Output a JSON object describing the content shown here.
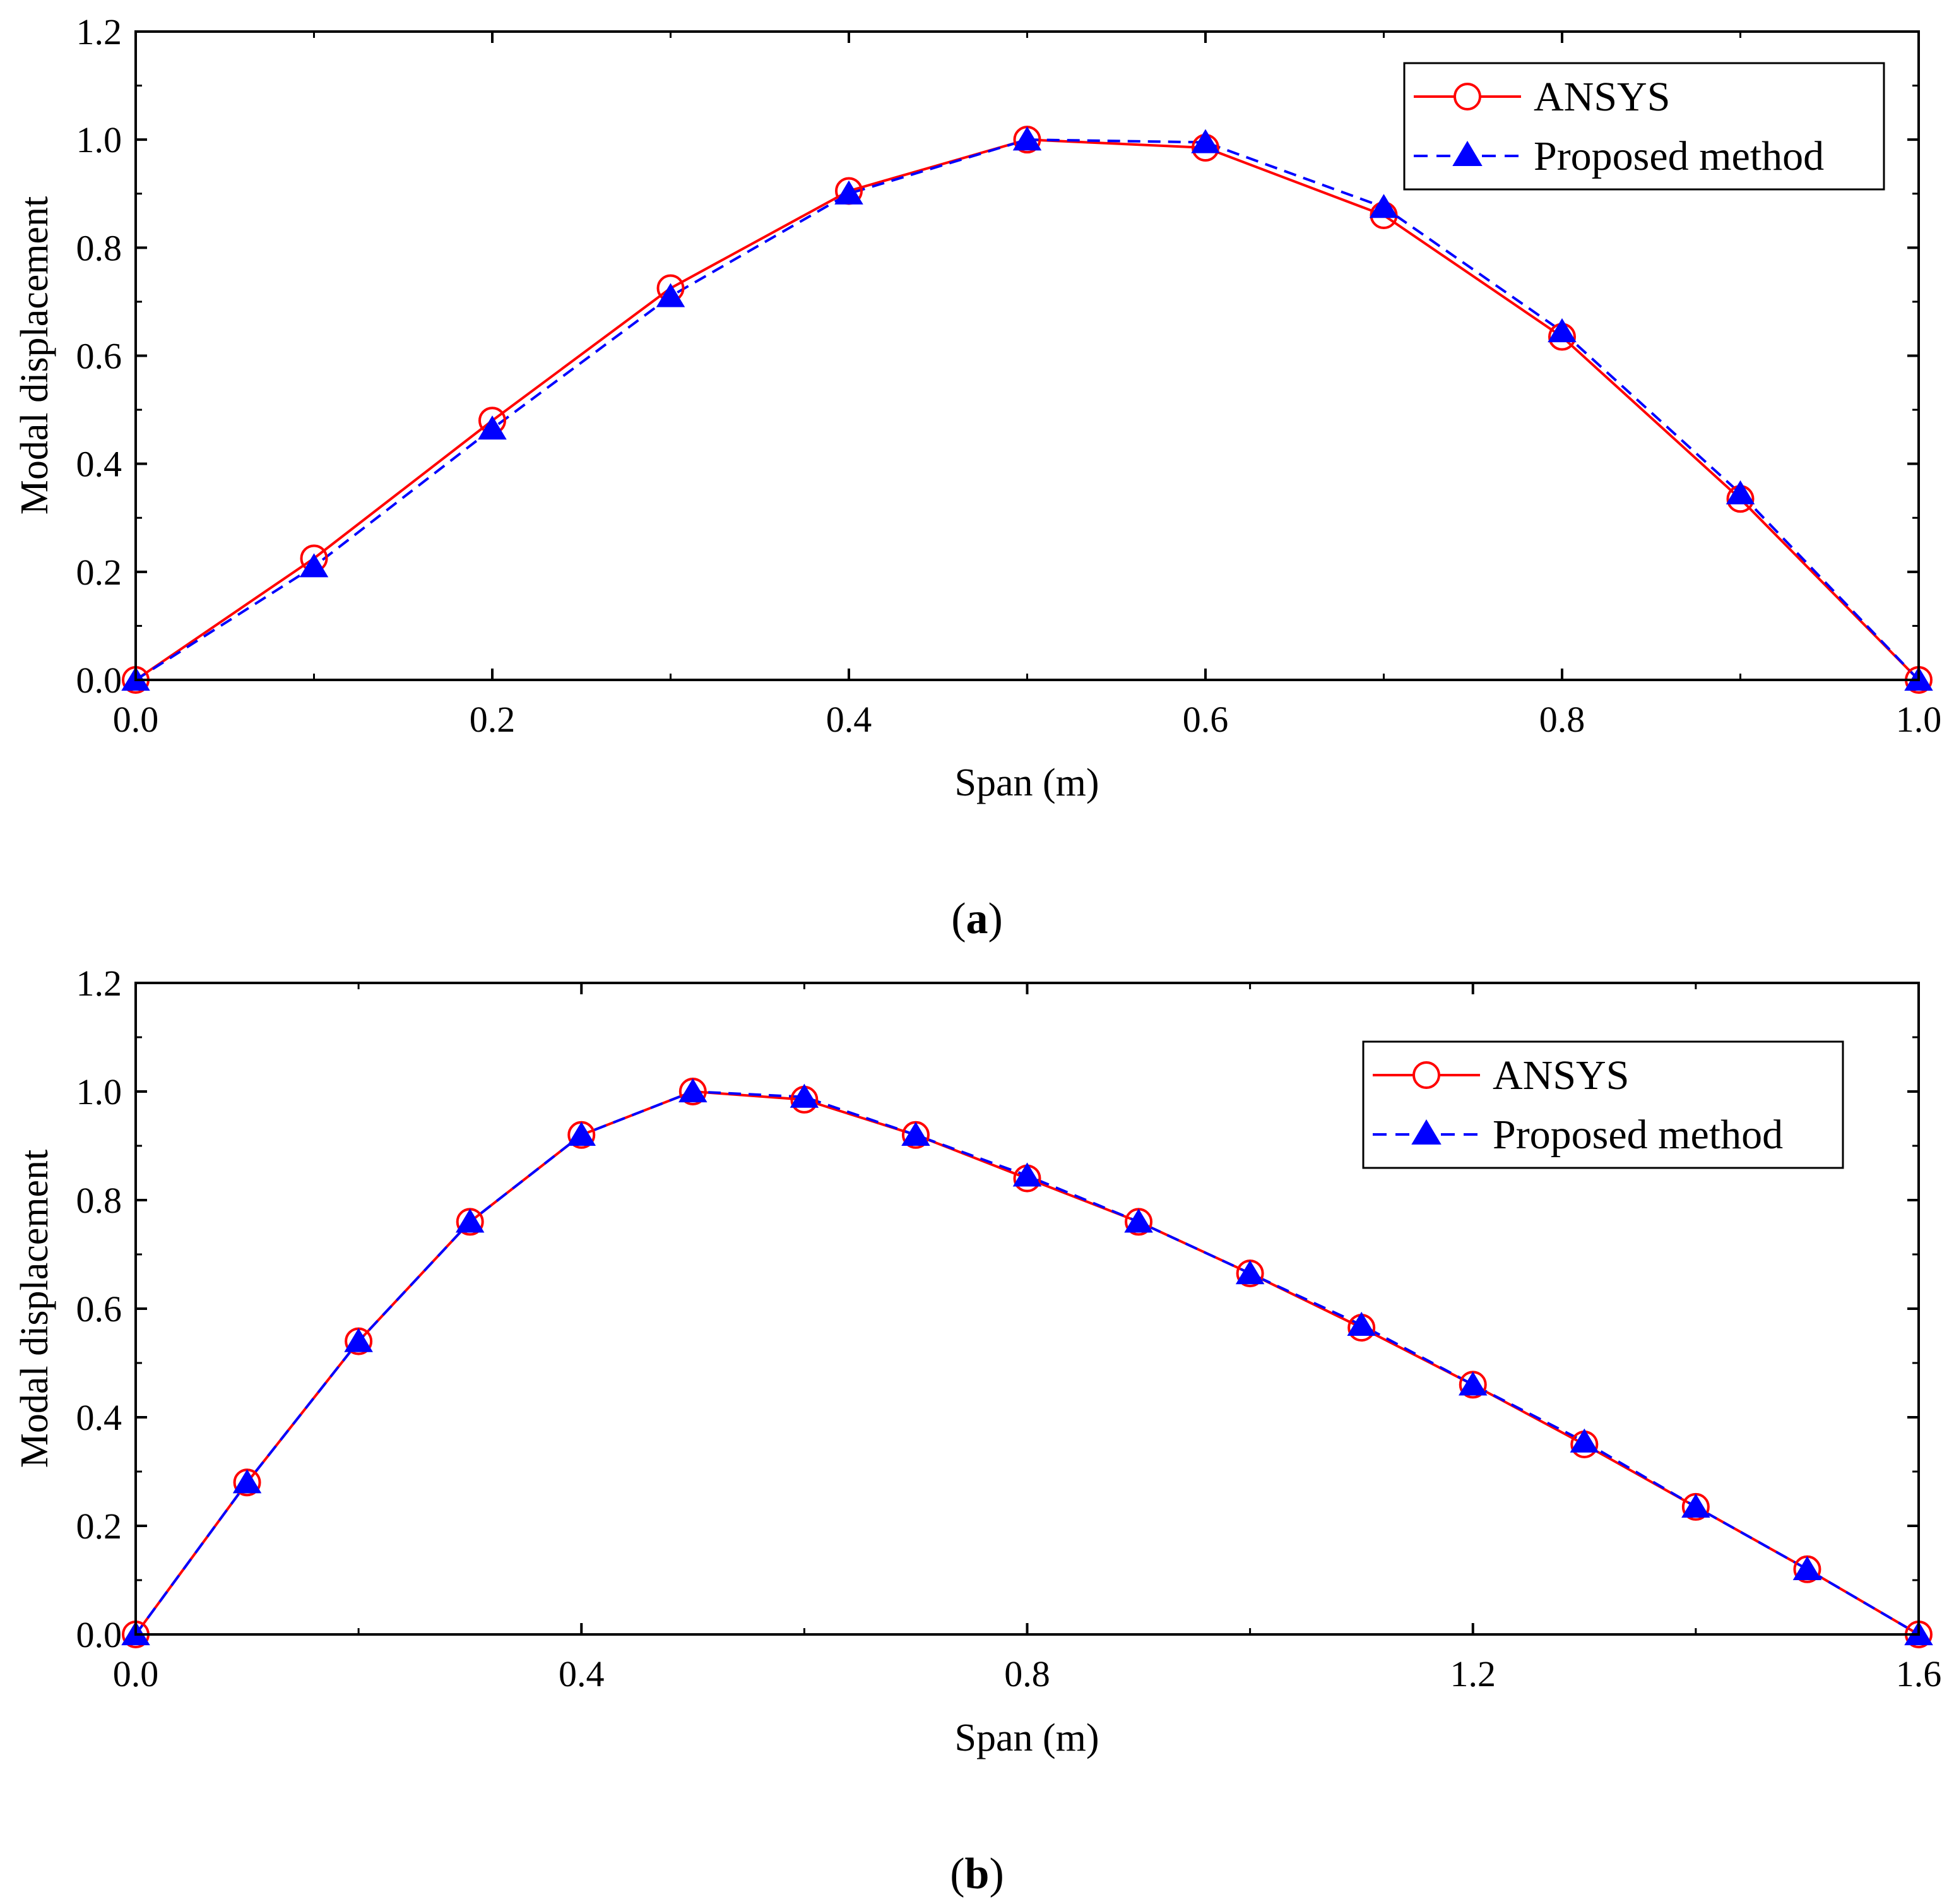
{
  "chart_data": [
    {
      "type": "line",
      "panel_label": "a",
      "xlabel": "Span (m)",
      "ylabel": "Modal displacement",
      "xlim": [
        0.0,
        1.0
      ],
      "ylim": [
        0.0,
        1.2
      ],
      "xticks": [
        "0.0",
        "0.2",
        "0.4",
        "0.6",
        "0.8",
        "1.0"
      ],
      "yticks": [
        "0.0",
        "0.2",
        "0.4",
        "0.6",
        "0.8",
        "1.0",
        "1.2"
      ],
      "xtick_values": [
        0.0,
        0.2,
        0.4,
        0.6,
        0.8,
        1.0
      ],
      "ytick_values": [
        0.0,
        0.2,
        0.4,
        0.6,
        0.8,
        1.0,
        1.2
      ],
      "legend_position": "top-right",
      "x": [
        0.0,
        0.1,
        0.2,
        0.3,
        0.4,
        0.5,
        0.6,
        0.7,
        0.8,
        0.9,
        1.0
      ],
      "series": [
        {
          "name": "ANSYS",
          "color": "#ff0000",
          "marker": "circle",
          "line": "solid",
          "values": [
            0.0,
            0.225,
            0.48,
            0.725,
            0.905,
            1.0,
            0.985,
            0.86,
            0.635,
            0.335,
            0.0
          ]
        },
        {
          "name": "Proposed method",
          "color": "#0000ff",
          "marker": "triangle",
          "line": "dashed",
          "values": [
            0.0,
            0.21,
            0.465,
            0.71,
            0.9,
            1.0,
            0.995,
            0.875,
            0.645,
            0.345,
            0.0
          ]
        }
      ]
    },
    {
      "type": "line",
      "panel_label": "b",
      "xlabel": "Span (m)",
      "ylabel": "Modal displacement",
      "xlim": [
        0.0,
        1.6
      ],
      "ylim": [
        0.0,
        1.2
      ],
      "xticks": [
        "0.0",
        "0.4",
        "0.8",
        "1.2",
        "1.6"
      ],
      "yticks": [
        "0.0",
        "0.2",
        "0.4",
        "0.6",
        "0.8",
        "1.0",
        "1.2"
      ],
      "xtick_values": [
        0.0,
        0.4,
        0.8,
        1.2,
        1.6
      ],
      "ytick_values": [
        0.0,
        0.2,
        0.4,
        0.6,
        0.8,
        1.0,
        1.2
      ],
      "legend_position": "top-right",
      "x": [
        0.0,
        0.1,
        0.2,
        0.3,
        0.4,
        0.5,
        0.6,
        0.7,
        0.8,
        0.9,
        1.0,
        1.1,
        1.2,
        1.3,
        1.4,
        1.5,
        1.6
      ],
      "series": [
        {
          "name": "ANSYS",
          "color": "#ff0000",
          "marker": "circle",
          "line": "solid",
          "values": [
            0.0,
            0.28,
            0.54,
            0.76,
            0.92,
            1.0,
            0.985,
            0.92,
            0.84,
            0.76,
            0.665,
            0.565,
            0.46,
            0.35,
            0.235,
            0.12,
            0.0
          ]
        },
        {
          "name": "Proposed method",
          "color": "#0000ff",
          "marker": "triangle",
          "line": "dashed",
          "values": [
            0.0,
            0.28,
            0.54,
            0.76,
            0.92,
            1.0,
            0.99,
            0.92,
            0.845,
            0.76,
            0.665,
            0.57,
            0.46,
            0.355,
            0.235,
            0.12,
            0.0
          ]
        }
      ]
    }
  ]
}
